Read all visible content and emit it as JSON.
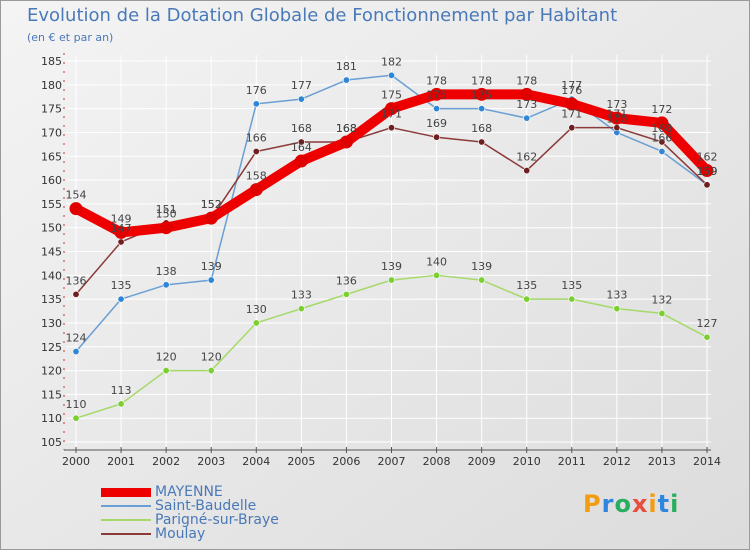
{
  "title": "Evolution de la Dotation Globale de Fonctionnement par Habitant",
  "subtitle": "(en € et par an)",
  "logo": {
    "text": "Proxiti",
    "colors": [
      "#f39c12",
      "#2e86de",
      "#27ae60",
      "#e74c3c",
      "#f39c12",
      "#2e86de",
      "#27ae60"
    ]
  },
  "chart_data": {
    "type": "line",
    "title": "Evolution de la Dotation Globale de Fonctionnement par Habitant",
    "subtitle": "(en € et par an)",
    "xlabel": "",
    "ylabel": "",
    "x": [
      "2000",
      "2001",
      "2002",
      "2003",
      "2004",
      "2005",
      "2006",
      "2007",
      "2008",
      "2009",
      "2010",
      "2011",
      "2012",
      "2013",
      "2014"
    ],
    "ylim": [
      105,
      185
    ],
    "yticks": [
      105,
      110,
      115,
      120,
      125,
      130,
      135,
      140,
      145,
      150,
      155,
      160,
      165,
      170,
      175,
      180,
      185
    ],
    "grid": true,
    "legend_position": "bottom-left",
    "series": [
      {
        "name": "Parigné-sur-Braye",
        "color": "#a6d96a",
        "marker": "#7ccf32",
        "width": 1.5,
        "values": [
          110,
          113,
          120,
          120,
          130,
          133,
          136,
          139,
          140,
          139,
          135,
          135,
          133,
          132,
          127
        ]
      },
      {
        "name": "Saint-Baudelle",
        "color": "#6a9fd4",
        "marker": "#2f86d6",
        "width": 1.5,
        "values": [
          124,
          135,
          138,
          139,
          176,
          177,
          181,
          182,
          175,
          175,
          173,
          177,
          170,
          166,
          159
        ]
      },
      {
        "name": "Moulay",
        "color": "#8b3a3a",
        "marker": "#6e1f1f",
        "width": 1.5,
        "values": [
          136,
          147,
          151,
          152,
          166,
          168,
          168,
          171,
          169,
          168,
          162,
          171,
          171,
          168,
          159
        ]
      },
      {
        "name": "MAYENNE",
        "color": "#ee0000",
        "marker": "#e00000",
        "width": 10,
        "values": [
          154,
          149,
          150,
          152,
          158,
          164,
          168,
          175,
          178,
          178,
          178,
          176,
          173,
          172,
          162
        ]
      }
    ],
    "legend_order": [
      "MAYENNE",
      "Saint-Baudelle",
      "Parigné-sur-Braye",
      "Moulay"
    ]
  }
}
